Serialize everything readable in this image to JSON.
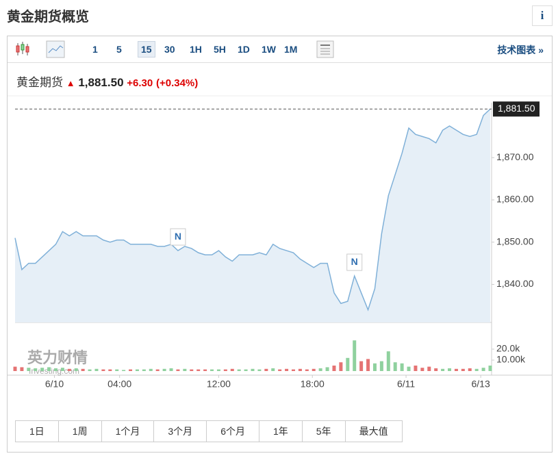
{
  "header": {
    "title": "黄金期货概览",
    "info": "i"
  },
  "toolbar": {
    "intervals": [
      "1",
      "5",
      "15",
      "30",
      "1H",
      "5H",
      "1D",
      "1W",
      "1M"
    ],
    "active_index": 2,
    "link": "技术图表 »"
  },
  "quote": {
    "name": "黄金期货",
    "price": "1,881.50",
    "change": "+6.30",
    "change_pct": "(+0.34%)"
  },
  "chart_data": {
    "type": "area",
    "color": "#7fb0d8",
    "fill": "#e6eff7",
    "values": [
      1851,
      1843.5,
      1845,
      1845,
      1846.5,
      1848,
      1849.5,
      1852.5,
      1851.5,
      1852.5,
      1851.5,
      1851.5,
      1851.5,
      1850.5,
      1850,
      1850.5,
      1850.5,
      1849.5,
      1849.5,
      1849.5,
      1849.5,
      1849,
      1849,
      1849.5,
      1848,
      1849,
      1848.5,
      1847.5,
      1847,
      1847,
      1848,
      1846.5,
      1845.5,
      1847,
      1847,
      1847,
      1847.5,
      1847,
      1849.5,
      1848.5,
      1848,
      1847.5,
      1846,
      1845,
      1844,
      1845,
      1845,
      1838,
      1835.5,
      1836,
      1842,
      1838,
      1834,
      1839,
      1852,
      1861,
      1866,
      1871,
      1877,
      1875.5,
      1875,
      1874.5,
      1873.5,
      1876.5,
      1877.5,
      1876.5,
      1875.5,
      1875,
      1875.5,
      1880,
      1881.5
    ],
    "xlim": [
      0,
      70
    ],
    "xticks": [
      {
        "value": 5.8,
        "label": "6/10"
      },
      {
        "value": 15.4,
        "label": "04:00"
      },
      {
        "value": 30,
        "label": "12:00"
      },
      {
        "value": 43.8,
        "label": "18:00"
      },
      {
        "value": 57.6,
        "label": "6/11"
      },
      {
        "value": 68.6,
        "label": "6/13"
      }
    ],
    "ylim": [
      1831,
      1883
    ],
    "yticks": [
      {
        "value": 1840,
        "label": "1,840.00"
      },
      {
        "value": 1850,
        "label": "1,850.00"
      },
      {
        "value": 1860,
        "label": "1,860.00"
      },
      {
        "value": 1870,
        "label": "1,870.00"
      }
    ],
    "annotations": [
      {
        "x": 24,
        "label": "N"
      },
      {
        "x": 50,
        "label": "N"
      }
    ],
    "volume": {
      "up_color": "#8fd19e",
      "down_color": "#e57373",
      "values": [
        4000,
        3500,
        3000,
        2500,
        3000,
        3500,
        2500,
        3000,
        2000,
        2500,
        2000,
        1500,
        2000,
        1500,
        1500,
        1500,
        1000,
        1500,
        1500,
        1500,
        2000,
        1500,
        2000,
        2500,
        1500,
        2000,
        1500,
        1500,
        1500,
        1500,
        1500,
        1500,
        2000,
        1500,
        1500,
        2000,
        1500,
        2000,
        2500,
        1500,
        2000,
        1500,
        2000,
        1500,
        2000,
        2500,
        3500,
        5000,
        8000,
        12000,
        28000,
        9000,
        11000,
        7000,
        9000,
        18000,
        8000,
        7000,
        4000,
        5000,
        3000,
        4000,
        2500,
        2000,
        2500,
        2000,
        2000,
        2500,
        2000,
        3000,
        5000
      ],
      "ylim": [
        0,
        30000
      ],
      "yticks": [
        {
          "value": 20000,
          "label": "20.0k"
        },
        {
          "value": 10000,
          "label": "10.00k"
        }
      ]
    },
    "watermark": {
      "cn": "英力财情",
      "en": "Investing.com"
    }
  },
  "ranges": [
    "1日",
    "1周",
    "1个月",
    "3个月",
    "6个月",
    "1年",
    "5年",
    "最大值"
  ]
}
